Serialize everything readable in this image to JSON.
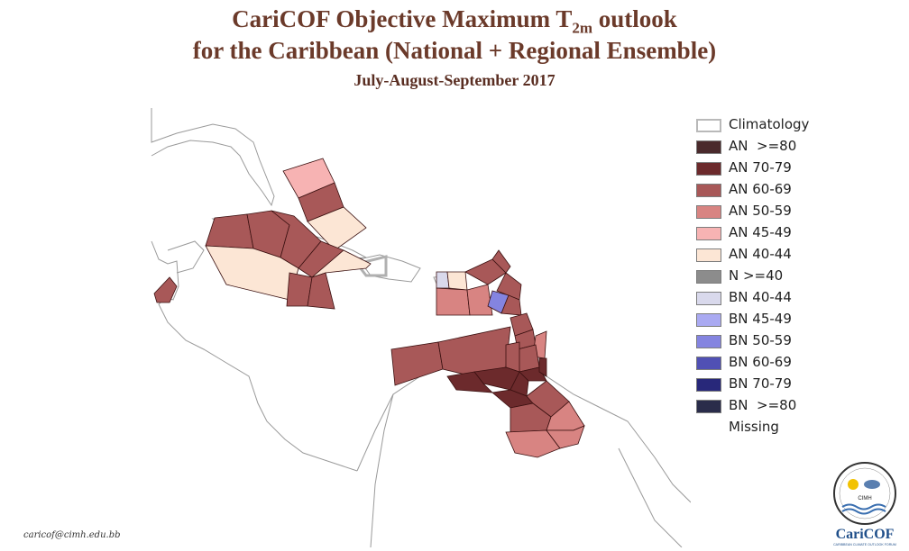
{
  "title": {
    "line1_prefix": "CariCOF Objective Maximum T",
    "line1_sub": "2m",
    "line1_suffix": " outlook",
    "line2": "for the Caribbean (National + Regional Ensemble)",
    "subtitle": "July-August-September 2017"
  },
  "legend": {
    "items": [
      {
        "label": "Climatology",
        "color": "#ffffff",
        "outline": "#b9b9b9"
      },
      {
        "label": "AN  >=80",
        "color": "#4a2a2c"
      },
      {
        "label": "AN 70-79",
        "color": "#6c2a2c"
      },
      {
        "label": "AN 60-69",
        "color": "#a85858"
      },
      {
        "label": "AN 50-59",
        "color": "#d88482"
      },
      {
        "label": "AN 45-49",
        "color": "#f7b3b3"
      },
      {
        "label": "AN 40-44",
        "color": "#fce6d5"
      },
      {
        "label": "N >=40",
        "color": "#8c8c8c"
      },
      {
        "label": "BN 40-44",
        "color": "#d9d9ec"
      },
      {
        "label": "BN 45-49",
        "color": "#aaaaf2"
      },
      {
        "label": "BN 50-59",
        "color": "#8484e0"
      },
      {
        "label": "BN 60-69",
        "color": "#5050b4"
      },
      {
        "label": "BN 70-79",
        "color": "#28287a"
      },
      {
        "label": "BN  >=80",
        "color": "#2a2c4a"
      },
      {
        "label": "Missing",
        "color": "#ffffff",
        "outline": "#ffffff"
      }
    ]
  },
  "footer": {
    "email": "caricof@cimh.edu.bb",
    "logo_top_text": "CIMH",
    "logo_brand": "CariCOF",
    "logo_caption": "CARIBBEAN CLIMATE OUTLOOK FORUM"
  }
}
